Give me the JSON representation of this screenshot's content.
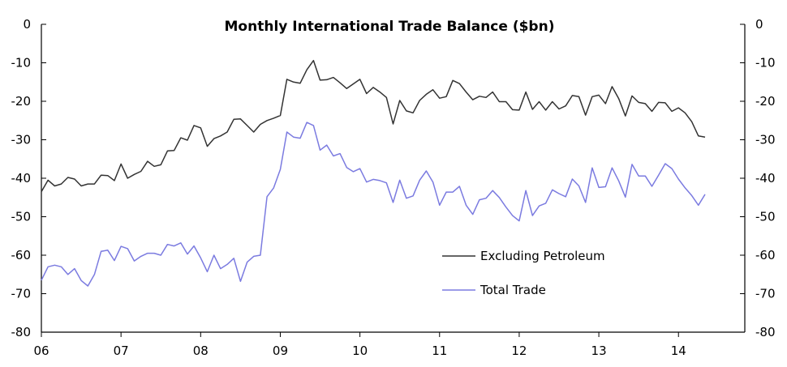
{
  "chart_data": {
    "type": "line",
    "title": "Monthly International Trade Balance ($bn)",
    "xlabel": "",
    "ylabel": "",
    "ylim": [
      -80,
      0
    ],
    "y_ticks": [
      0,
      -10,
      -20,
      -30,
      -40,
      -50,
      -60,
      -70,
      -80
    ],
    "y_tick_labels": [
      "0",
      "-10",
      "-20",
      "-30",
      "-40",
      "-50",
      "-60",
      "-70",
      "-80"
    ],
    "x_range": [
      2006,
      2014.833
    ],
    "x_ticks": [
      2006,
      2007,
      2008,
      2009,
      2010,
      2011,
      2012,
      2013,
      2014
    ],
    "x_tick_labels": [
      "06",
      "07",
      "08",
      "09",
      "10",
      "11",
      "12",
      "13",
      "14"
    ],
    "legend_position": "center-right",
    "grid": false,
    "x_start": 2006,
    "x_step_months": 1,
    "series": [
      {
        "name": "Excluding Petroleum",
        "color": "#333333",
        "values": [
          -43.5,
          -40.5,
          -42.0,
          -41.5,
          -39.8,
          -40.2,
          -42.0,
          -41.5,
          -41.5,
          -39.2,
          -39.3,
          -40.6,
          -36.3,
          -40.0,
          -39.0,
          -38.2,
          -35.6,
          -36.9,
          -36.5,
          -32.9,
          -32.8,
          -29.5,
          -30.1,
          -26.3,
          -26.9,
          -31.7,
          -29.7,
          -29.0,
          -28.0,
          -24.7,
          -24.6,
          -26.3,
          -28.0,
          -26.0,
          -25.0,
          -24.4,
          -23.7,
          -14.3,
          -15.0,
          -15.3,
          -11.8,
          -9.4,
          -14.5,
          -14.4,
          -13.8,
          -15.2,
          -16.7,
          -15.5,
          -14.3,
          -18.0,
          -16.4,
          -17.6,
          -19.0,
          -25.9,
          -19.8,
          -22.5,
          -23.0,
          -19.8,
          -18.2,
          -17.0,
          -19.2,
          -18.8,
          -14.6,
          -15.4,
          -17.6,
          -19.6,
          -18.7,
          -19.0,
          -17.6,
          -20.1,
          -20.1,
          -22.2,
          -22.3,
          -17.6,
          -22.1,
          -20.1,
          -22.3,
          -20.1,
          -22.0,
          -21.2,
          -18.5,
          -18.8,
          -23.6,
          -18.8,
          -18.4,
          -20.6,
          -16.2,
          -19.3,
          -23.8,
          -18.6,
          -20.3,
          -20.6,
          -22.6,
          -20.3,
          -20.4,
          -22.6,
          -21.7,
          -23.0,
          -25.3,
          -29.0,
          -29.3
        ]
      },
      {
        "name": "Total Trade",
        "color": "#7b7be0",
        "values": [
          -66.5,
          -63.0,
          -62.6,
          -63.0,
          -65.0,
          -63.5,
          -66.6,
          -68.0,
          -65.0,
          -59.0,
          -58.7,
          -61.4,
          -57.7,
          -58.3,
          -61.5,
          -60.3,
          -59.5,
          -59.5,
          -60.0,
          -57.2,
          -57.6,
          -56.8,
          -59.7,
          -57.6,
          -60.7,
          -64.3,
          -60.0,
          -63.5,
          -62.4,
          -60.8,
          -66.8,
          -61.8,
          -60.3,
          -60.0,
          -44.8,
          -42.5,
          -37.7,
          -28.0,
          -29.3,
          -29.6,
          -25.5,
          -26.3,
          -32.7,
          -31.4,
          -34.2,
          -33.6,
          -37.2,
          -38.3,
          -37.5,
          -41.0,
          -40.3,
          -40.6,
          -41.2,
          -46.3,
          -40.5,
          -45.2,
          -44.6,
          -40.5,
          -38.1,
          -41.0,
          -47.0,
          -43.6,
          -43.6,
          -42.1,
          -47.0,
          -49.4,
          -45.6,
          -45.2,
          -43.2,
          -45.0,
          -47.5,
          -49.7,
          -51.1,
          -43.2,
          -49.7,
          -47.2,
          -46.5,
          -43.0,
          -44.0,
          -44.8,
          -40.2,
          -42.0,
          -46.3,
          -37.3,
          -42.4,
          -42.2,
          -37.3,
          -40.7,
          -44.9,
          -36.4,
          -39.4,
          -39.4,
          -42.1,
          -39.2,
          -36.2,
          -37.5,
          -40.2,
          -42.5,
          -44.5,
          -47.0,
          -44.2
        ]
      }
    ]
  }
}
